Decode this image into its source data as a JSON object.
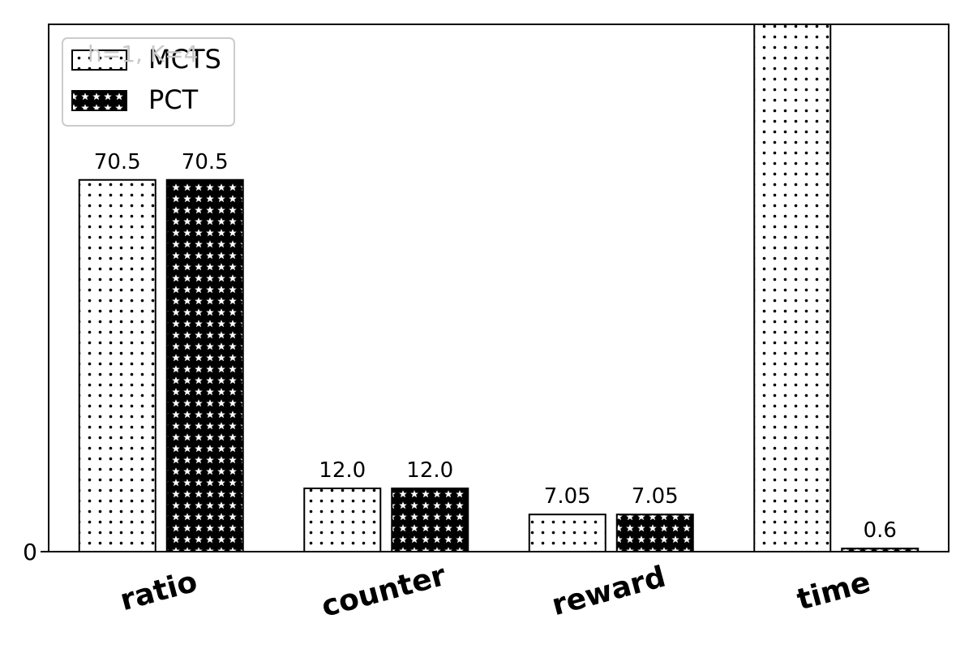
{
  "chart_data": {
    "type": "bar",
    "categories": [
      "ratio",
      "counter",
      "reward",
      "time"
    ],
    "series": [
      {
        "name": "MCTS",
        "values": [
          70.5,
          12.0,
          7.05,
          100.0
        ],
        "labels": [
          "70.5",
          "12.0",
          "7.05",
          ""
        ],
        "pattern": "dots",
        "edge_color": "#000000",
        "fill_color": "#ffffff"
      },
      {
        "name": "PCT",
        "values": [
          70.5,
          12.0,
          7.05,
          0.6
        ],
        "labels": [
          "70.5",
          "12.0",
          "7.05",
          "0.6"
        ],
        "pattern": "stars",
        "edge_color": "#000000",
        "fill_color": "#000000"
      }
    ],
    "title": "",
    "xlabel": "",
    "ylabel": "",
    "ylim": [
      0,
      100
    ],
    "y_ticks": [
      "0"
    ],
    "annotation": "h=1, K=4",
    "grid": false,
    "legend": {
      "placement": "top-left",
      "entries": [
        "MCTS",
        "PCT"
      ]
    }
  }
}
